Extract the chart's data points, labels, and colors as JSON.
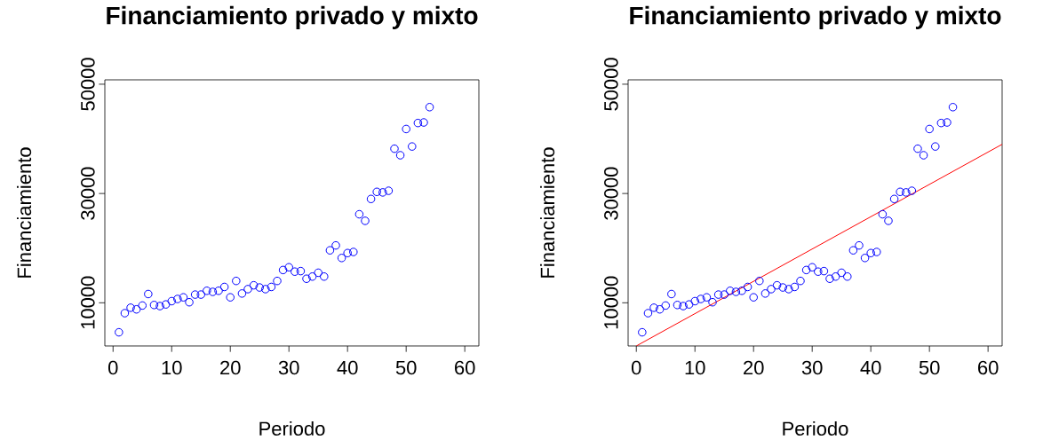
{
  "chart_data": [
    {
      "type": "scatter",
      "title": "Financiamiento privado y mixto",
      "xlabel": "Periodo",
      "ylabel": "Financiamiento",
      "marker": "circle",
      "xlim": [
        -1.4,
        62.4
      ],
      "ylim": [
        2100,
        50800
      ],
      "xticks": [
        0,
        10,
        20,
        30,
        40,
        50,
        60
      ],
      "yticks": [
        10000,
        30000,
        50000
      ],
      "x": [
        1,
        2,
        3,
        4,
        5,
        6,
        7,
        8,
        9,
        10,
        11,
        12,
        13,
        14,
        15,
        16,
        17,
        18,
        19,
        20,
        21,
        22,
        23,
        24,
        25,
        26,
        27,
        28,
        29,
        30,
        31,
        32,
        33,
        34,
        35,
        36,
        37,
        38,
        39,
        40,
        41,
        42,
        43,
        44,
        45,
        46,
        47,
        48,
        49,
        50,
        51,
        52,
        53,
        54
      ],
      "series": [
        {
          "color": "#0000ff",
          "values": [
            4600,
            8100,
            9100,
            8800,
            9500,
            11600,
            9600,
            9400,
            9700,
            10300,
            10700,
            11000,
            10100,
            11500,
            11500,
            12200,
            12000,
            12200,
            12900,
            11000,
            14000,
            11700,
            12500,
            13200,
            12800,
            12500,
            12900,
            14000,
            16000,
            16500,
            15700,
            15800,
            14400,
            14800,
            15500,
            14800,
            19600,
            20500,
            18200,
            19100,
            19300,
            26200,
            25000,
            29000,
            30300,
            30200,
            30500,
            38200,
            37000,
            41800,
            38600,
            42900,
            43000,
            45800
          ]
        }
      ]
    },
    {
      "type": "scatter",
      "title": "Financiamiento privado y mixto",
      "xlabel": "Periodo",
      "ylabel": "Financiamiento",
      "marker": "circle",
      "xlim": [
        -1.4,
        62.4
      ],
      "ylim": [
        2100,
        50800
      ],
      "xticks": [
        0,
        10,
        20,
        30,
        40,
        50,
        60
      ],
      "yticks": [
        10000,
        30000,
        50000
      ],
      "x": [
        1,
        2,
        3,
        4,
        5,
        6,
        7,
        8,
        9,
        10,
        11,
        12,
        13,
        14,
        15,
        16,
        17,
        18,
        19,
        20,
        21,
        22,
        23,
        24,
        25,
        26,
        27,
        28,
        29,
        30,
        31,
        32,
        33,
        34,
        35,
        36,
        37,
        38,
        39,
        40,
        41,
        42,
        43,
        44,
        45,
        46,
        47,
        48,
        49,
        50,
        51,
        52,
        53,
        54
      ],
      "series": [
        {
          "color": "#0000ff",
          "values": [
            4600,
            8100,
            9100,
            8800,
            9500,
            11600,
            9600,
            9400,
            9700,
            10300,
            10700,
            11000,
            10100,
            11500,
            11500,
            12200,
            12000,
            12200,
            12900,
            11000,
            14000,
            11700,
            12500,
            13200,
            12800,
            12500,
            12900,
            14000,
            16000,
            16500,
            15700,
            15800,
            14400,
            14800,
            15500,
            14800,
            19600,
            20500,
            18200,
            19100,
            19300,
            26200,
            25000,
            29000,
            30300,
            30200,
            30500,
            38200,
            37000,
            41800,
            38600,
            42900,
            43000,
            45800
          ]
        },
        {
          "type": "line",
          "color": "#ff0000",
          "marker": "none",
          "x": [
            0,
            62.4
          ],
          "values": [
            2100,
            39000
          ]
        }
      ]
    }
  ]
}
